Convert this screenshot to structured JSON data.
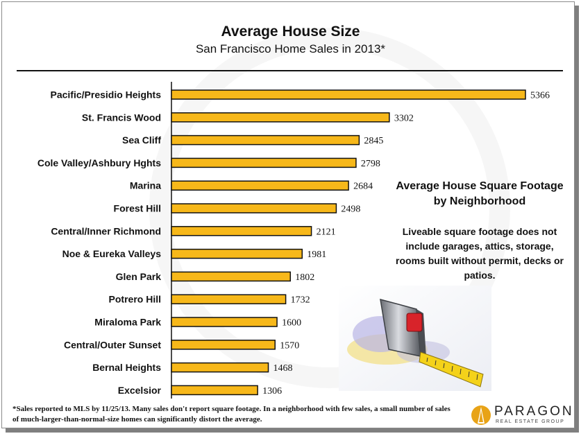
{
  "chart_data": {
    "type": "bar",
    "orientation": "horizontal",
    "title": "Average House Size",
    "subtitle": "San Francisco Home Sales in 2013*",
    "categories": [
      "Pacific/Presidio Heights",
      "St. Francis Wood",
      "Sea Cliff",
      "Cole Valley/Ashbury Hghts",
      "Marina",
      "Forest Hill",
      "Central/Inner Richmond",
      "Noe & Eureka Valleys",
      "Glen Park",
      "Potrero Hill",
      "Miraloma Park",
      "Central/Outer Sunset",
      "Bernal Heights",
      "Excelsior"
    ],
    "values": [
      5366,
      3302,
      2845,
      2798,
      2684,
      2498,
      2121,
      1981,
      1802,
      1732,
      1600,
      1570,
      1468,
      1306
    ],
    "xlim": [
      0,
      5500
    ],
    "grid": false,
    "bar_color": "#f7b81a",
    "bar_outline": "#111111"
  },
  "side_panel": {
    "heading": "Average House Square Footage by Neighborhood",
    "note": "Liveable square footage does not include garages, attics, storage, rooms built without permit, decks or patios."
  },
  "footnote": "*Sales reported to MLS by 11/25/13. Many sales don't report square footage. In a neighborhood with few sales, a small number of sales of much-larger-than-normal-size homes can significantly distort the average.",
  "logo": {
    "name": "PARAGON",
    "tagline": "REAL ESTATE GROUP",
    "color": "#e8a317"
  },
  "image_icon": "tape-measure-icon"
}
